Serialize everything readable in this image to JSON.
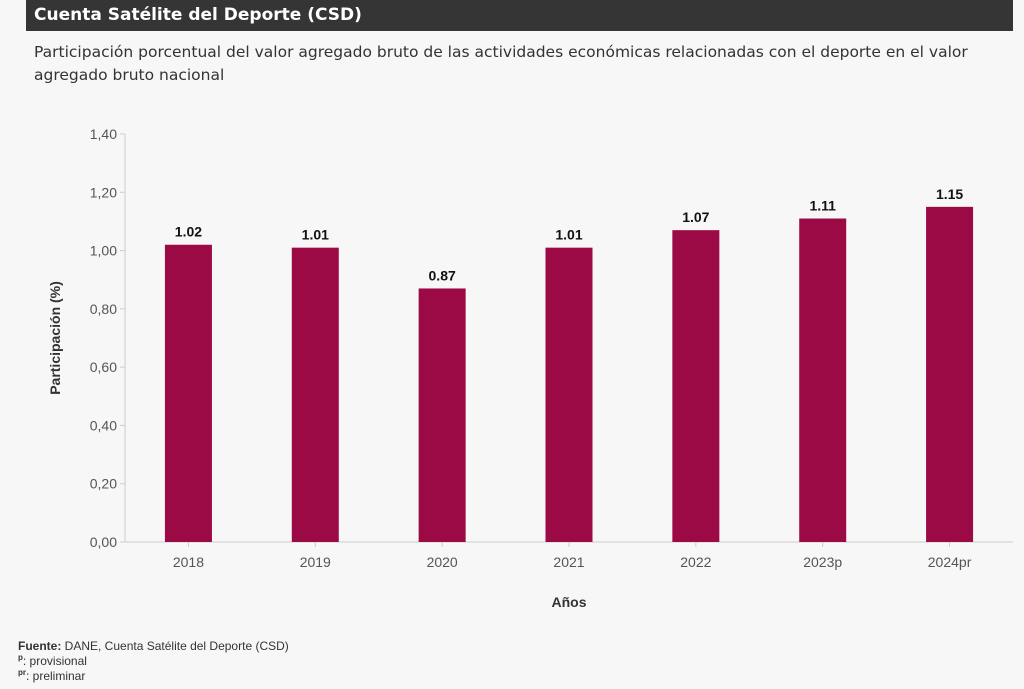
{
  "header": {
    "title": "Cuenta Satélite del Deporte (CSD)"
  },
  "chart_data": {
    "type": "bar",
    "title": "Participación porcentual del valor agregado bruto de las actividades económicas relacionadas con el deporte en el valor agregado bruto nacional",
    "xlabel": "Años",
    "ylabel": "Participación (%)",
    "categories": [
      "2018",
      "2019",
      "2020",
      "2021",
      "2022",
      "2023p",
      "2024pr"
    ],
    "values": [
      1.02,
      1.01,
      0.87,
      1.01,
      1.07,
      1.11,
      1.15
    ],
    "data_labels": [
      "1.02",
      "1.01",
      "0.87",
      "1.01",
      "1.07",
      "1.11",
      "1.15"
    ],
    "ylim": [
      0,
      1.4
    ],
    "yticks": [
      "0,00",
      "0,20",
      "0,40",
      "0,60",
      "0,80",
      "1,00",
      "1,20",
      "1,40"
    ],
    "bar_color": "#9b0a45",
    "grid": false
  },
  "footer": {
    "source_label": "Fuente:",
    "source_text": " DANE, Cuenta Satélite del Deporte (CSD)",
    "p_sup": "p",
    "p_text": ": provisional",
    "pr_sup": "pr",
    "pr_text": ": preliminar"
  }
}
